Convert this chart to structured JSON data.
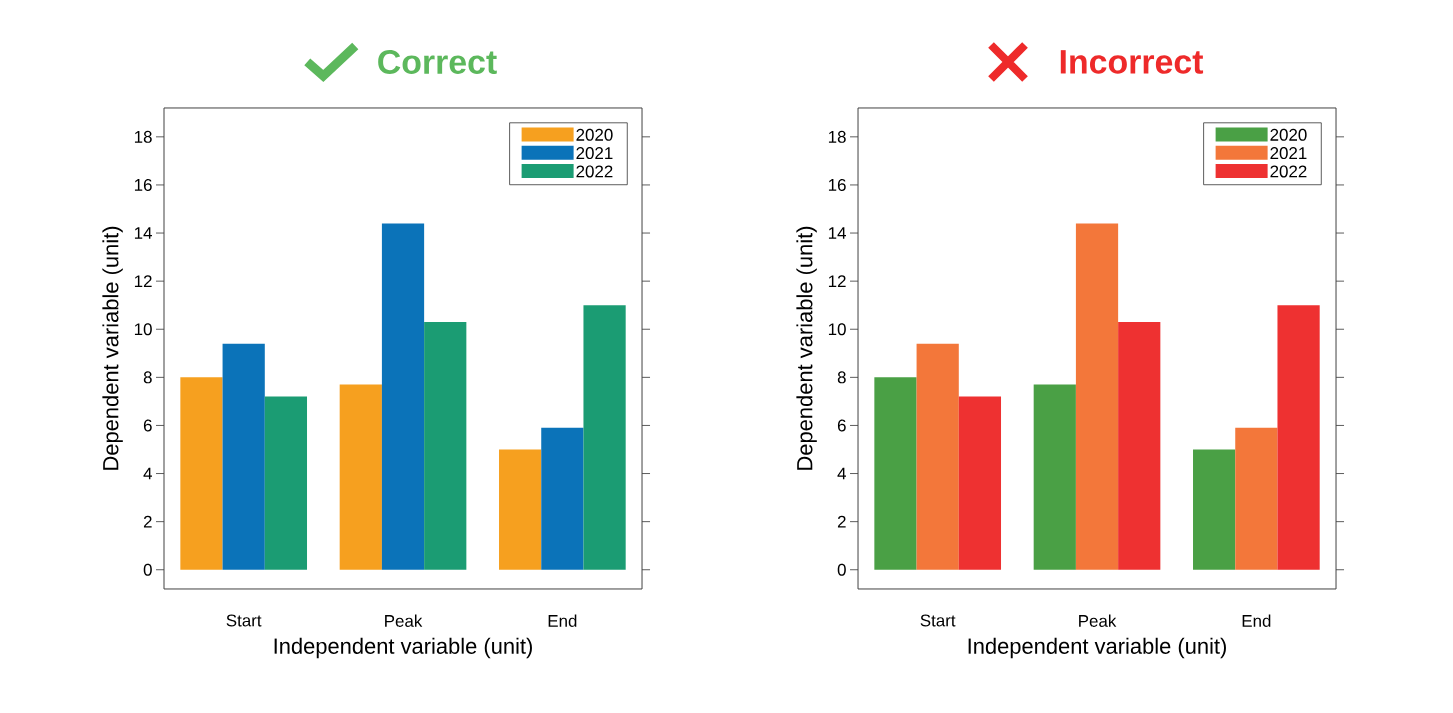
{
  "chart_data": [
    {
      "type": "bar",
      "title": "Correct",
      "xlabel": "Independent variable (unit)",
      "ylabel": "Dependent variable (unit)",
      "categories": [
        "Start",
        "Peak",
        "End"
      ],
      "series": [
        {
          "name": "2020",
          "color": "#f6a01f",
          "values": [
            8.0,
            7.7,
            5.0
          ]
        },
        {
          "name": "2021",
          "color": "#0b73b9",
          "values": [
            9.4,
            14.4,
            5.9
          ]
        },
        {
          "name": "2022",
          "color": "#1b9c73",
          "values": [
            7.2,
            10.3,
            11.0
          ]
        }
      ],
      "ylim": [
        -0.8,
        19.2
      ],
      "yticks": [
        0,
        2,
        4,
        6,
        8,
        10,
        12,
        14,
        16,
        18
      ],
      "legend": "top right",
      "grid": false
    },
    {
      "type": "bar",
      "title": "Incorrect",
      "xlabel": "Independent variable (unit)",
      "ylabel": "Dependent variable (unit)",
      "categories": [
        "Start",
        "Peak",
        "End"
      ],
      "series": [
        {
          "name": "2020",
          "color": "#4aa045",
          "values": [
            8.0,
            7.7,
            5.0
          ]
        },
        {
          "name": "2021",
          "color": "#f3773a",
          "values": [
            9.4,
            14.4,
            5.9
          ]
        },
        {
          "name": "2022",
          "color": "#ee3131",
          "values": [
            7.2,
            10.3,
            11.0
          ]
        }
      ],
      "ylim": [
        -0.8,
        19.2
      ],
      "yticks": [
        0,
        2,
        4,
        6,
        8,
        10,
        12,
        14,
        16,
        18
      ],
      "legend": "top right",
      "grid": false
    }
  ]
}
